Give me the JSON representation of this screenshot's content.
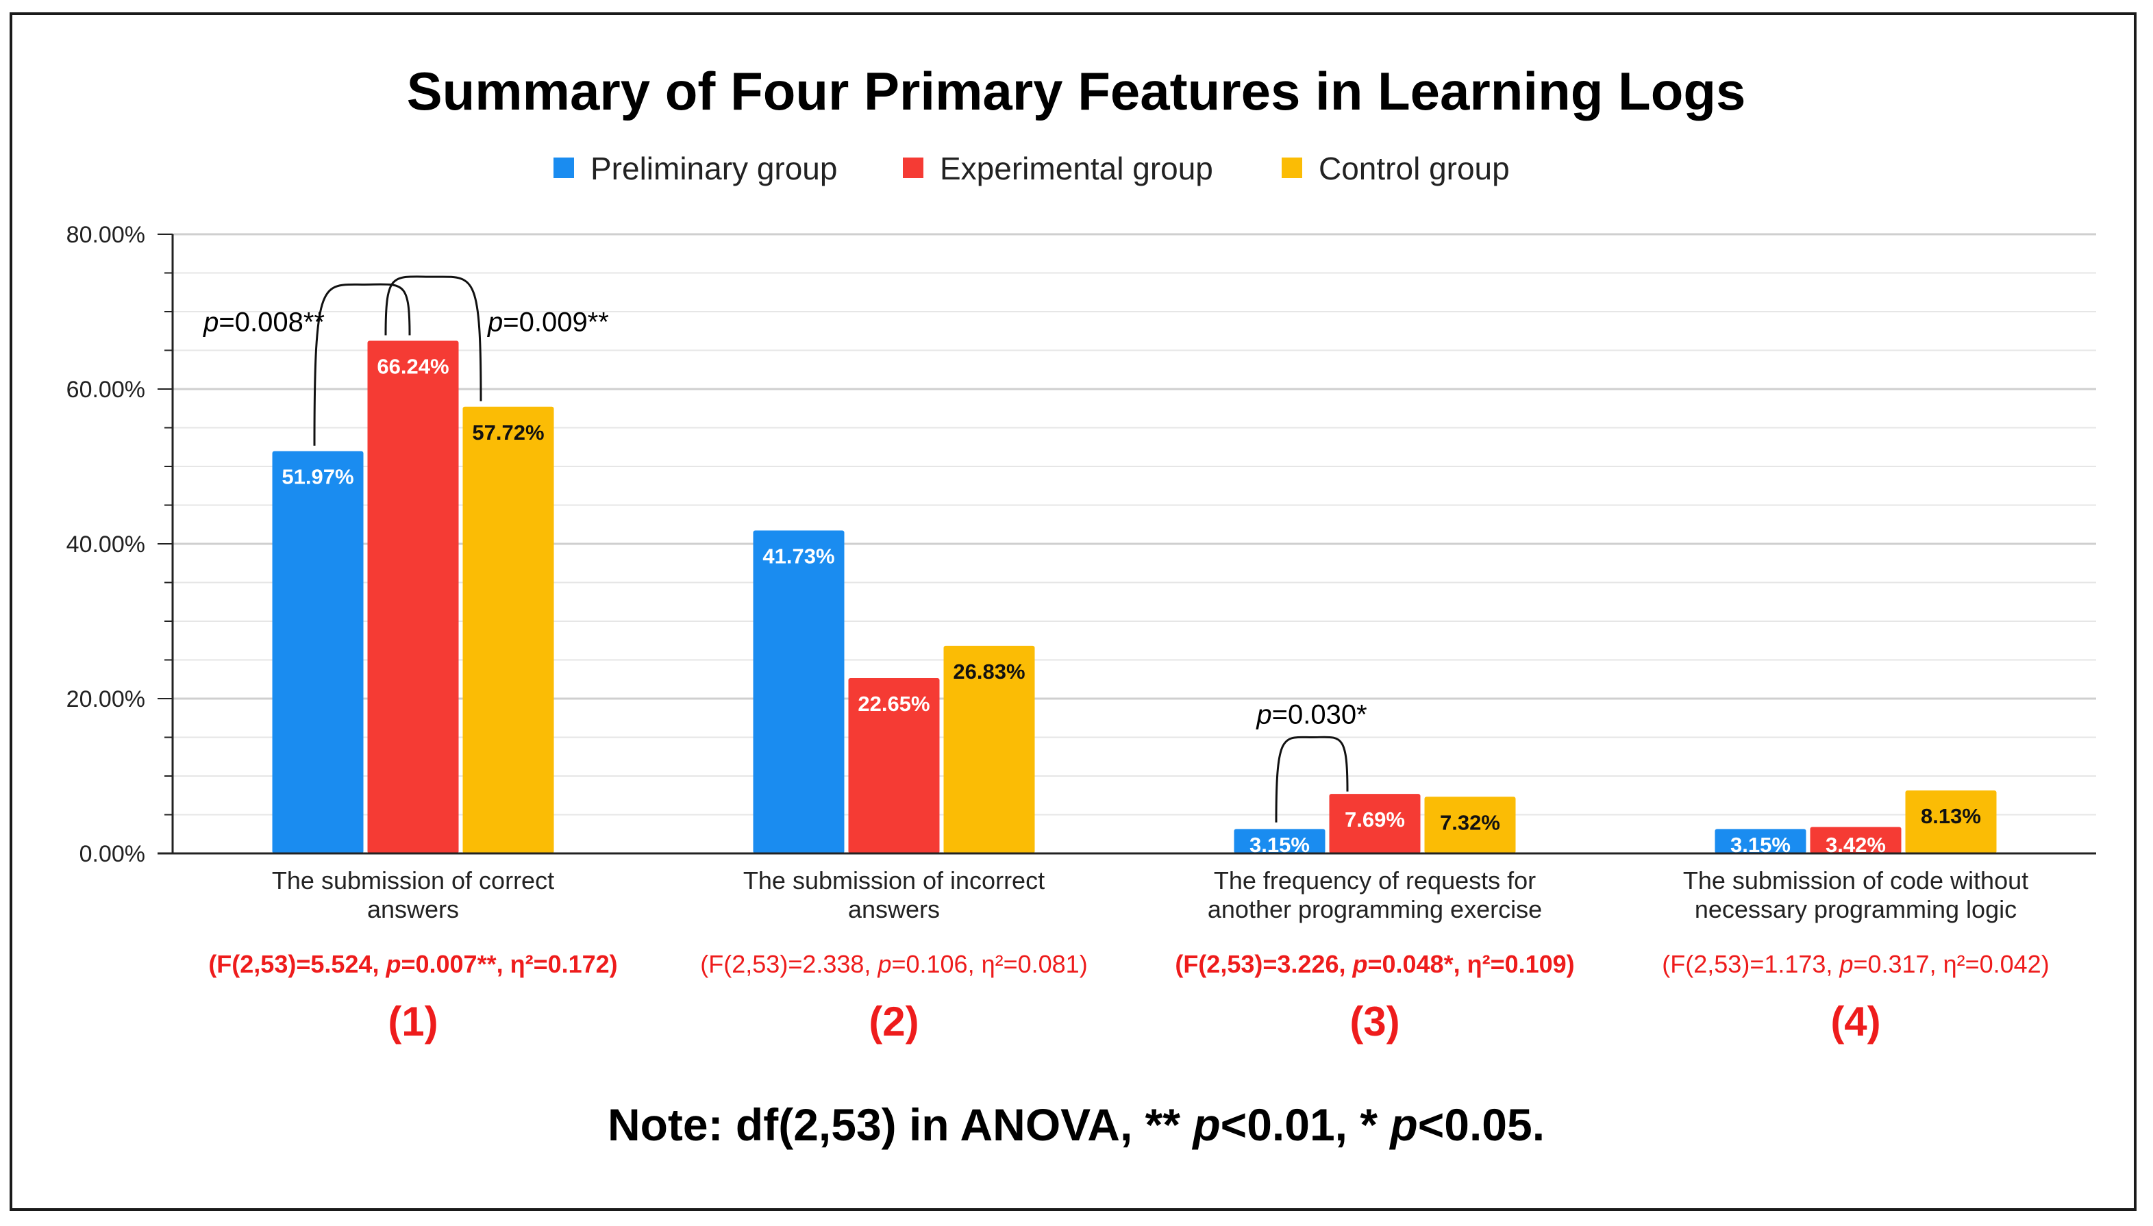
{
  "chart_data": {
    "type": "bar",
    "title": "Summary of Four Primary Features in Learning Logs",
    "ylim": [
      0,
      80
    ],
    "yticks": [
      "0.00%",
      "20.00%",
      "40.00%",
      "60.00%",
      "80.00%"
    ],
    "series": [
      {
        "name": "Preliminary group",
        "color": "#1a8cf0",
        "values": [
          51.97,
          41.73,
          3.15,
          3.15
        ],
        "labels": [
          "51.97%",
          "41.73%",
          "3.15%",
          "3.15%"
        ]
      },
      {
        "name": "Experimental group",
        "color": "#f53b34",
        "values": [
          66.24,
          22.65,
          7.69,
          3.42
        ],
        "labels": [
          "66.24%",
          "22.65%",
          "7.69%",
          "3.42%"
        ]
      },
      {
        "name": "Control group",
        "color": "#fbbc05",
        "values": [
          57.72,
          26.83,
          7.32,
          8.13
        ],
        "labels": [
          "57.72%",
          "26.83%",
          "7.32%",
          "8.13%"
        ]
      }
    ],
    "categories": [
      {
        "line1": "The submission of correct",
        "line2": "answers",
        "stat_a": "(F(2,53)=5.524, ",
        "stat_p": "p",
        "stat_b": "=0.007**, η²=0.172)",
        "significant": true,
        "number": "(1)"
      },
      {
        "line1": "The submission of incorrect",
        "line2": "answers",
        "stat_a": "(F(2,53)=2.338, ",
        "stat_p": "p",
        "stat_b": "=0.106, η²=0.081)",
        "significant": false,
        "number": "(2)"
      },
      {
        "line1": "The frequency of requests for",
        "line2": "another programming exercise",
        "stat_a": "(F(2,53)=3.226, ",
        "stat_p": "p",
        "stat_b": "=0.048*, η²=0.109)",
        "significant": true,
        "number": "(3)"
      },
      {
        "line1": "The submission of code without",
        "line2": "necessary programming logic",
        "stat_a": "(F(2,53)=1.173, ",
        "stat_p": "p",
        "stat_b": "=0.317, η²=0.042)",
        "significant": false,
        "number": "(4)"
      }
    ],
    "annotations": [
      {
        "category": 0,
        "from": 0,
        "to": 1,
        "p": "p",
        "text": "=0.008**"
      },
      {
        "category": 0,
        "from": 1,
        "to": 2,
        "p": "p",
        "text": "=0.009**"
      },
      {
        "category": 2,
        "from": 0,
        "to": 1,
        "p": "p",
        "text": "=0.030*"
      }
    ],
    "note": {
      "a": "Note: df(2,53) in ANOVA, ** ",
      "p1": "p",
      "b": "<0.01, * ",
      "p2": "p",
      "c": "<0.05."
    }
  }
}
